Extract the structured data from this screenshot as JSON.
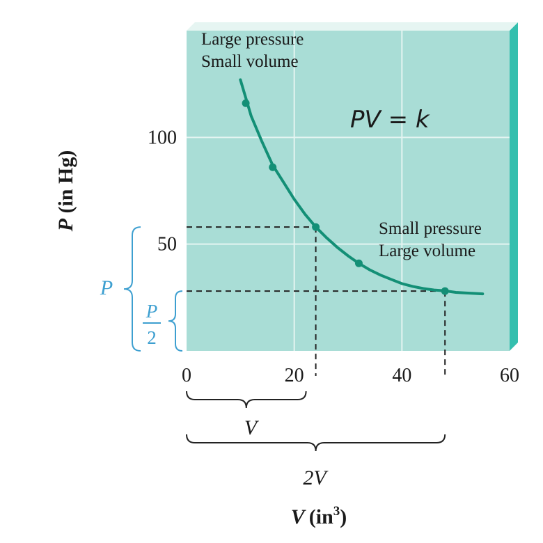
{
  "colors": {
    "plot_bg": "#a9ddd6",
    "plot_edge": "#34bfae",
    "grid": "#e4f4f1",
    "curve": "#138f76",
    "bracket": "#3d9fd0",
    "text": "#1a1a1a"
  },
  "chart_data": {
    "type": "line",
    "xlabel_main": "V",
    "xlabel_unit": "(in",
    "xlabel_exp": "3",
    "xlabel_close": ")",
    "ylabel_main": "P",
    "ylabel_unit": " (in Hg)",
    "xlim": [
      0,
      60
    ],
    "ylim": [
      0,
      150
    ],
    "x_ticks": [
      0,
      20,
      40,
      60
    ],
    "x_tick_labels": [
      "0",
      "20",
      "40",
      "60"
    ],
    "y_ticks": [
      50,
      100
    ],
    "y_tick_labels": [
      "50",
      "100"
    ],
    "grid": true,
    "equation": "PV = k",
    "series": [
      {
        "name": "PV = k",
        "curve_x": [
          10,
          12,
          14,
          16,
          18,
          20,
          22,
          24,
          26,
          28,
          30,
          32,
          34,
          36,
          38,
          40,
          42,
          44,
          46,
          48,
          50,
          52,
          55
        ],
        "curve_y": [
          127,
          110,
          98,
          87,
          79,
          71,
          64,
          58,
          53,
          48.5,
          44.5,
          41,
          38,
          35.5,
          33.5,
          31.5,
          30.2,
          29.2,
          28.5,
          28.1,
          27.4,
          27.1,
          26.7
        ],
        "points": [
          {
            "x": 11,
            "y": 116
          },
          {
            "x": 16,
            "y": 86
          },
          {
            "x": 24,
            "y": 58
          },
          {
            "x": 32,
            "y": 41
          },
          {
            "x": 48,
            "y": 28
          }
        ]
      }
    ],
    "annotations": {
      "top_left": [
        "Large pressure",
        "Small volume"
      ],
      "bottom_right": [
        "Small pressure",
        "Large volume"
      ]
    },
    "reference": {
      "v": 24,
      "p": 58,
      "v2": 48,
      "p_half": 28
    },
    "bracket_labels": {
      "v": "V",
      "two_v": "2V",
      "p": "P",
      "p_half_num": "P",
      "p_half_den": "2"
    }
  }
}
